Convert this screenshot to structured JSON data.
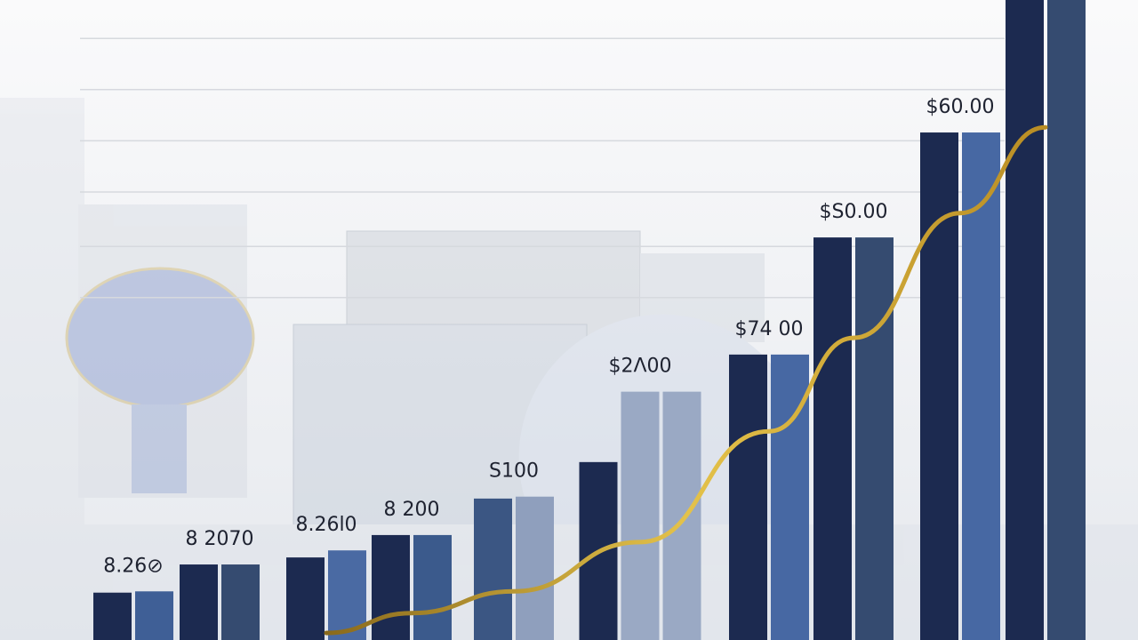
{
  "chart_data": {
    "type": "bar",
    "ylim": [
      0,
      100
    ],
    "gridlines": [
      94,
      86,
      78,
      70,
      61.5,
      53.5
    ],
    "groups": [
      {
        "label": "8.26⊘",
        "bars": [
          {
            "value": 7.4,
            "color": "#1c2a50"
          },
          {
            "value": 7.6,
            "color": "#3f5f96"
          }
        ]
      },
      {
        "label": "8 2070",
        "bars": [
          {
            "value": 11.8,
            "color": "#1c2a50"
          },
          {
            "value": 11.8,
            "color": "#354b70"
          }
        ]
      },
      {
        "label": "8.26l0",
        "bars": [
          {
            "value": 12.9,
            "color": "#1c2a50"
          },
          {
            "value": 14.0,
            "color": "#4a6aa3"
          }
        ]
      },
      {
        "label": "8 200",
        "bars": [
          {
            "value": 16.4,
            "color": "#1c2a50"
          },
          {
            "value": 16.4,
            "color": "#3b5a8c"
          }
        ]
      },
      {
        "label": "S100",
        "bars": [
          {
            "value": 22.1,
            "color": "#3b5683"
          },
          {
            "value": 22.4,
            "color": "#8f9fbd"
          }
        ]
      },
      {
        "label": "$2Λ00",
        "bars": [
          {
            "value": 27.8,
            "color": "#1c2a50"
          },
          {
            "value": 38.8,
            "color": "#9aa9c4"
          },
          {
            "value": 38.8,
            "color": "#9aa9c4"
          }
        ]
      },
      {
        "label": "$74 00",
        "bars": [
          {
            "value": 44.6,
            "color": "#1c2a50"
          },
          {
            "value": 44.6,
            "color": "#4768a3"
          }
        ]
      },
      {
        "label": "$S0.00",
        "bars": [
          {
            "value": 62.9,
            "color": "#1c2a50"
          },
          {
            "value": 62.9,
            "color": "#354b70"
          }
        ]
      },
      {
        "label": "$60.00",
        "bars": [
          {
            "value": 79.3,
            "color": "#1c2a50"
          },
          {
            "value": 79.3,
            "color": "#4768a3"
          }
        ]
      },
      {
        "label": null,
        "bars": [
          {
            "value": 100,
            "color": "#1c2a50"
          },
          {
            "value": 100,
            "color": "#354b70"
          }
        ]
      }
    ],
    "line": {
      "color": "#c9a23a",
      "values": [
        null,
        null,
        1.1,
        4.2,
        7.6,
        15.3,
        32.6,
        47.2,
        66.7,
        80.1
      ]
    }
  }
}
